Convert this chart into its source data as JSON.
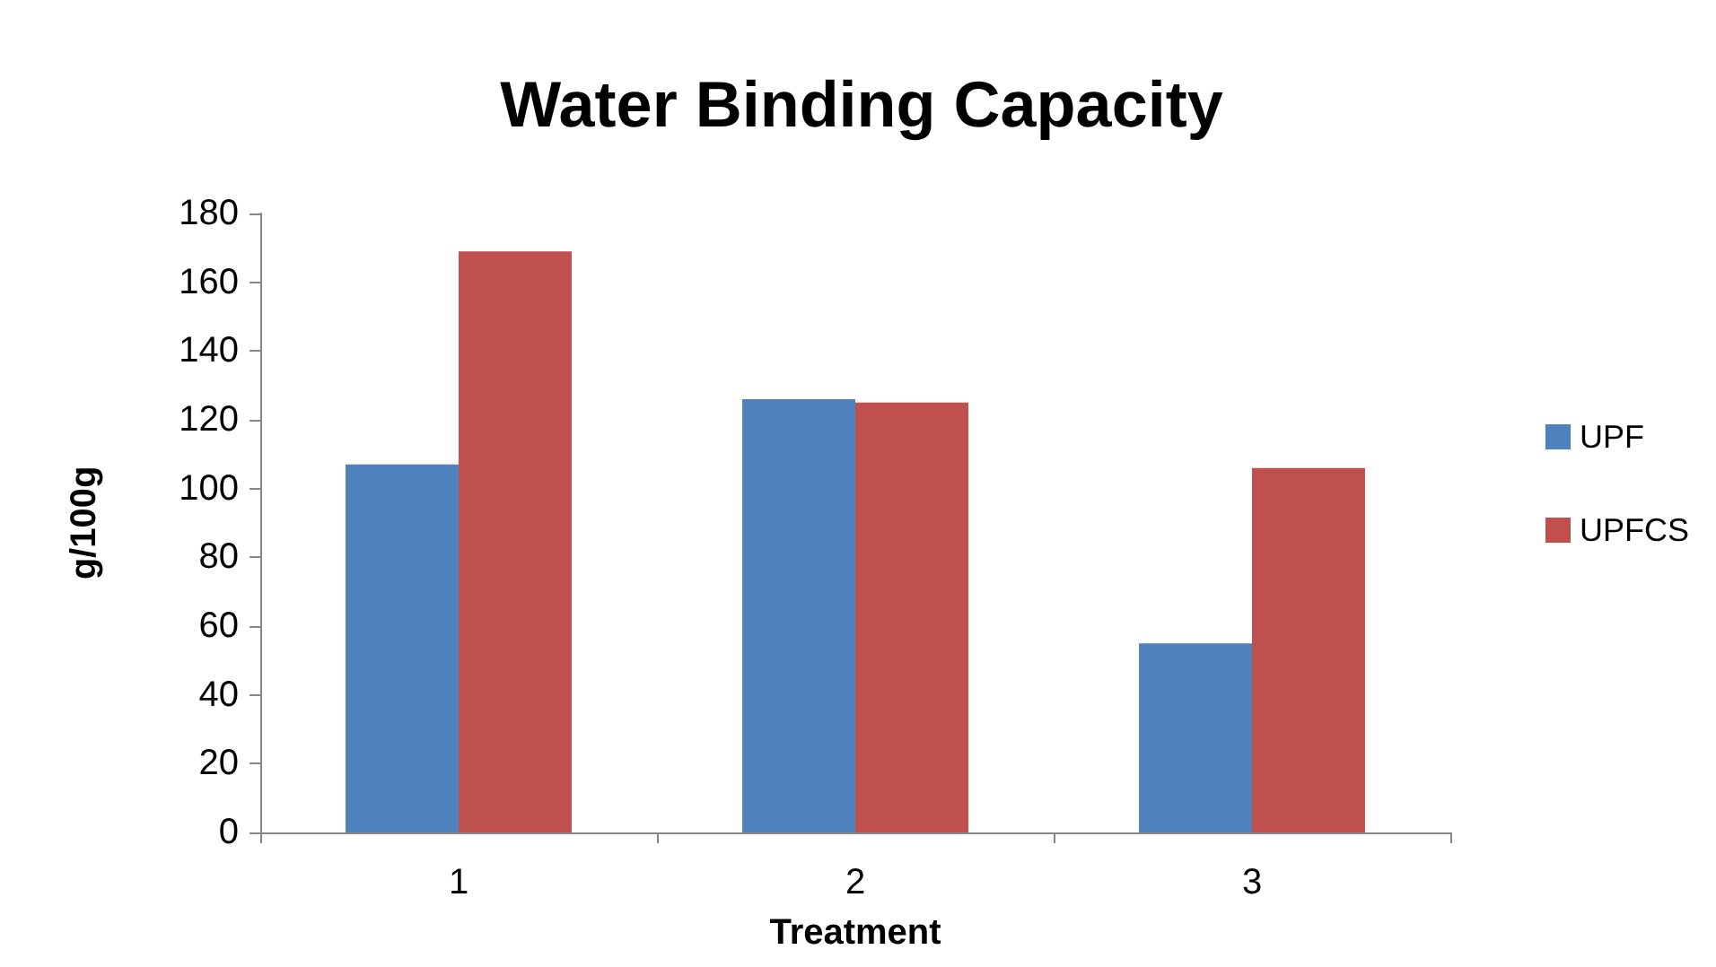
{
  "chart_data": {
    "type": "bar",
    "title": "Water Binding Capacity",
    "xlabel": "Treatment",
    "ylabel": "g/100g",
    "categories": [
      "1",
      "2",
      "3"
    ],
    "series": [
      {
        "name": "UPF",
        "color": "#4f81bd",
        "values": [
          107,
          126,
          55
        ]
      },
      {
        "name": "UPFCS",
        "color": "#c0504d",
        "values": [
          169,
          125,
          106
        ]
      }
    ],
    "ylim": [
      0,
      180
    ],
    "yticks": [
      0,
      20,
      40,
      60,
      80,
      100,
      120,
      140,
      160,
      180
    ],
    "grid": false,
    "legend": "right"
  }
}
